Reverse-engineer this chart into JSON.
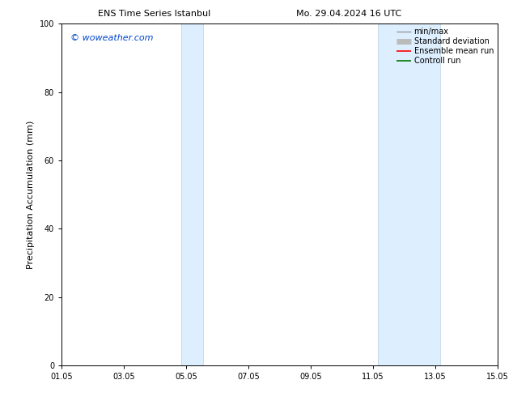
{
  "title_left": "ENS Time Series Istanbul",
  "title_right": "Mo. 29.04.2024 16 UTC",
  "ylabel": "Precipitation Accumulation (mm)",
  "watermark": "© woweather.com",
  "watermark_color": "#0044cc",
  "ylim": [
    0,
    100
  ],
  "yticks": [
    0,
    20,
    40,
    60,
    80,
    100
  ],
  "xticklabels": [
    "01.05",
    "03.05",
    "05.05",
    "07.05",
    "09.05",
    "11.05",
    "13.05",
    "15.05"
  ],
  "xtick_positions": [
    0,
    2,
    4,
    6,
    8,
    10,
    12,
    14
  ],
  "xlim": [
    0,
    14
  ],
  "shaded_bands": [
    {
      "x_start": 3.85,
      "x_end": 4.55
    },
    {
      "x_start": 10.15,
      "x_end": 12.15
    }
  ],
  "band_color": "#ddeeff",
  "band_edge_color": "#b8cfe0",
  "legend_entries": [
    {
      "label": "min/max",
      "color": "#999999",
      "lw": 1.0
    },
    {
      "label": "Standard deviation",
      "color": "#bbbbbb",
      "lw": 5
    },
    {
      "label": "Ensemble mean run",
      "color": "#ff0000",
      "lw": 1.2
    },
    {
      "label": "Controll run",
      "color": "#007700",
      "lw": 1.2
    }
  ],
  "background_color": "#ffffff",
  "spine_color": "#000000",
  "title_fontsize": 8,
  "tick_fontsize": 7,
  "ylabel_fontsize": 8,
  "watermark_fontsize": 8,
  "legend_fontsize": 7
}
